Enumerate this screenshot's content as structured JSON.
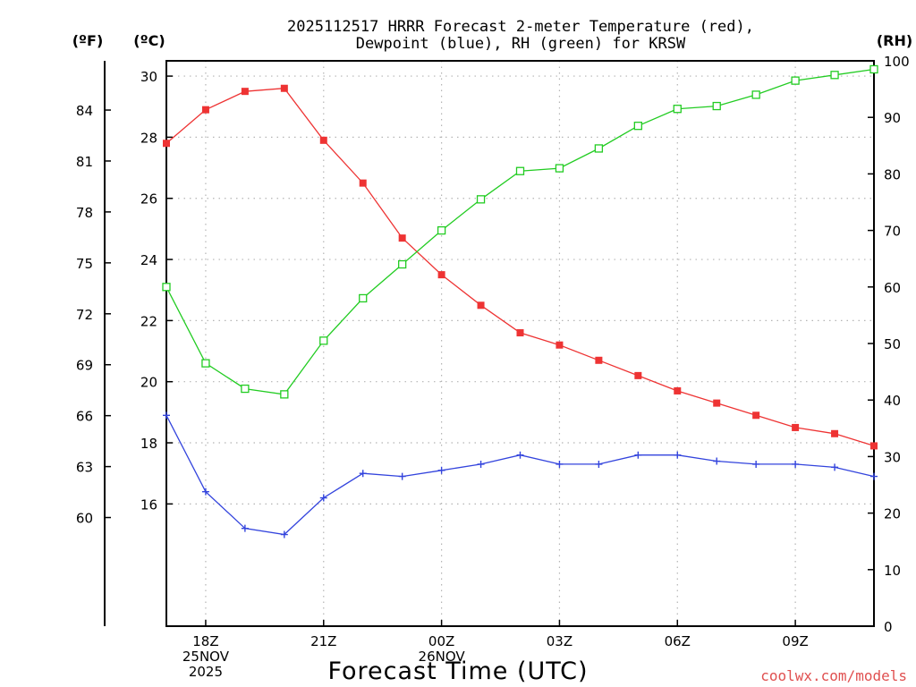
{
  "chart_data": {
    "type": "line",
    "title": "2025112517 HRRR Forecast 2-meter Temperature (red),",
    "subtitle": "Dewpoint (blue), RH (green) for KRSW",
    "xlabel": "Forecast Time (UTC)",
    "units": {
      "fahrenheit": "(ºF)",
      "celsius": "(ºC)",
      "rh": "(RH)"
    },
    "credit": "coolwx.com/models",
    "x": [
      0,
      1,
      2,
      3,
      4,
      5,
      6,
      7,
      8,
      9,
      10,
      11,
      12,
      13,
      14,
      15,
      16,
      17,
      18
    ],
    "x_range": [
      0,
      18
    ],
    "x_ticks": [
      {
        "x": 1,
        "lines": [
          "18Z",
          "25NOV",
          "2025"
        ]
      },
      {
        "x": 4,
        "lines": [
          "21Z"
        ]
      },
      {
        "x": 7,
        "lines": [
          "00Z",
          "26NOV"
        ]
      },
      {
        "x": 10,
        "lines": [
          "03Z"
        ]
      },
      {
        "x": 13,
        "lines": [
          "06Z"
        ]
      },
      {
        "x": 16,
        "lines": [
          "09Z"
        ]
      }
    ],
    "celsius_axis": {
      "range": [
        12,
        30.5
      ],
      "ticks": [
        16,
        18,
        20,
        22,
        24,
        26,
        28,
        30
      ]
    },
    "fahrenheit_axis": {
      "ticks": [
        60,
        63,
        66,
        69,
        72,
        75,
        78,
        81,
        84
      ]
    },
    "rh_axis": {
      "range": [
        0,
        100
      ],
      "ticks": [
        0,
        10,
        20,
        30,
        40,
        50,
        60,
        70,
        80,
        90,
        100
      ]
    },
    "series": [
      {
        "name": "Temperature",
        "axis": "celsius",
        "color": "#ee3333",
        "marker": "filled-square",
        "values": [
          27.8,
          28.9,
          29.5,
          29.6,
          27.9,
          26.5,
          24.7,
          23.5,
          22.5,
          21.6,
          21.2,
          20.7,
          20.2,
          19.7,
          19.3,
          18.9,
          18.5,
          18.3,
          17.9
        ]
      },
      {
        "name": "Dewpoint",
        "axis": "celsius",
        "color": "#3344dd",
        "marker": "plus",
        "values": [
          18.9,
          16.4,
          15.2,
          15.0,
          16.2,
          17.0,
          16.9,
          17.1,
          17.3,
          17.6,
          17.3,
          17.3,
          17.6,
          17.6,
          17.4,
          17.3,
          17.3,
          17.2,
          16.9
        ]
      },
      {
        "name": "RH",
        "axis": "rh",
        "color": "#22cc22",
        "marker": "open-square",
        "values": [
          60,
          46.5,
          42,
          41,
          50.5,
          58,
          64,
          70,
          75.5,
          80.5,
          81,
          84.5,
          88.5,
          91.5,
          92,
          94,
          96.5,
          97.5,
          98.5
        ]
      }
    ]
  }
}
